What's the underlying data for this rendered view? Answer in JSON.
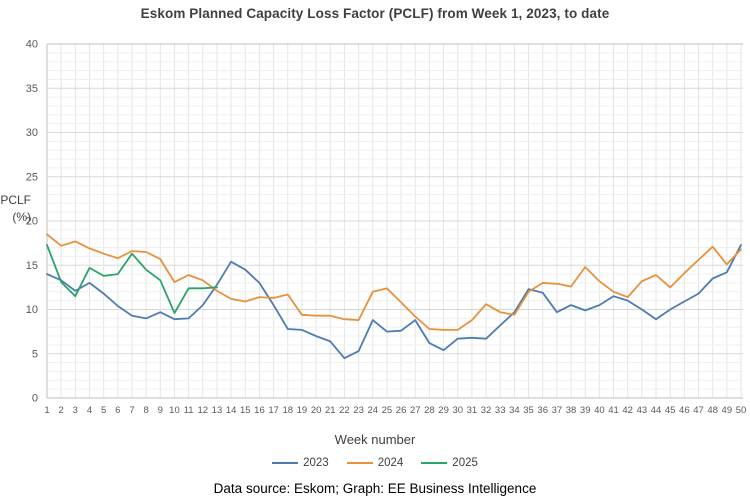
{
  "title": "Eskom Planned Capacity Loss Factor (PCLF) from Week 1, 2023, to date",
  "footer": "Data source: Eskom; Graph: EE Business Intelligence",
  "ylabel_line1": "PCLF",
  "ylabel_line2": "(%)",
  "chart_data": {
    "type": "line",
    "title": "Eskom Planned Capacity Loss Factor (PCLF) from Week 1, 2023, to date",
    "xlabel": "Week number",
    "ylabel": "PCLF (%)",
    "ylim": [
      0,
      40
    ],
    "ytick_step": 5,
    "yticks": [
      0,
      5,
      10,
      15,
      20,
      25,
      30,
      35,
      40
    ],
    "xticks": [
      1,
      2,
      3,
      4,
      5,
      6,
      7,
      8,
      9,
      10,
      11,
      12,
      13,
      14,
      15,
      16,
      17,
      18,
      19,
      20,
      21,
      22,
      23,
      24,
      25,
      26,
      27,
      28,
      29,
      30,
      31,
      32,
      33,
      34,
      35,
      36,
      37,
      38,
      39,
      40,
      41,
      42,
      43,
      44,
      45,
      46,
      47,
      48,
      49,
      50
    ],
    "grid": true,
    "legend_position": "bottom",
    "colors": {
      "grid_minor": "#f0f0f0",
      "grid_major": "#d8d8d8",
      "grid_vertical": "#e5e5e5",
      "axis_border": "#bfbfbf",
      "tick_text": "#595959"
    },
    "series": [
      {
        "name": "2023",
        "color": "#4d7cb3",
        "values": [
          14.0,
          13.3,
          12.1,
          13.0,
          11.8,
          10.4,
          9.3,
          9.0,
          9.7,
          8.9,
          9.0,
          10.5,
          12.8,
          15.4,
          14.5,
          13.0,
          10.5,
          7.8,
          7.7,
          7.0,
          6.4,
          4.5,
          5.3,
          8.8,
          7.5,
          7.6,
          8.8,
          6.2,
          5.4,
          6.7,
          6.8,
          6.7,
          8.2,
          9.7,
          12.3,
          11.9,
          9.7,
          10.5,
          9.9,
          10.5,
          11.5,
          11.0,
          10.0,
          8.9,
          10.0,
          10.9,
          11.8,
          13.5,
          14.2,
          17.3
        ]
      },
      {
        "name": "2024",
        "color": "#e8913d",
        "values": [
          18.5,
          17.2,
          17.7,
          16.9,
          16.3,
          15.8,
          16.6,
          16.5,
          15.7,
          13.1,
          13.9,
          13.3,
          12.1,
          11.2,
          10.9,
          11.4,
          11.3,
          11.7,
          9.4,
          9.3,
          9.3,
          8.9,
          8.8,
          12.0,
          12.4,
          10.8,
          9.2,
          7.8,
          7.7,
          7.7,
          8.8,
          10.6,
          9.7,
          9.4,
          12.0,
          13.0,
          12.9,
          12.6,
          14.8,
          13.2,
          12.0,
          11.4,
          13.2,
          13.9,
          12.5,
          14.1,
          15.6,
          17.1,
          15.1,
          16.8
        ]
      },
      {
        "name": "2025",
        "color": "#29a36a",
        "values": [
          17.3,
          13.1,
          11.5,
          14.7,
          13.8,
          14.0,
          16.3,
          14.5,
          13.3,
          9.6,
          12.4,
          12.4,
          12.5
        ]
      }
    ]
  }
}
